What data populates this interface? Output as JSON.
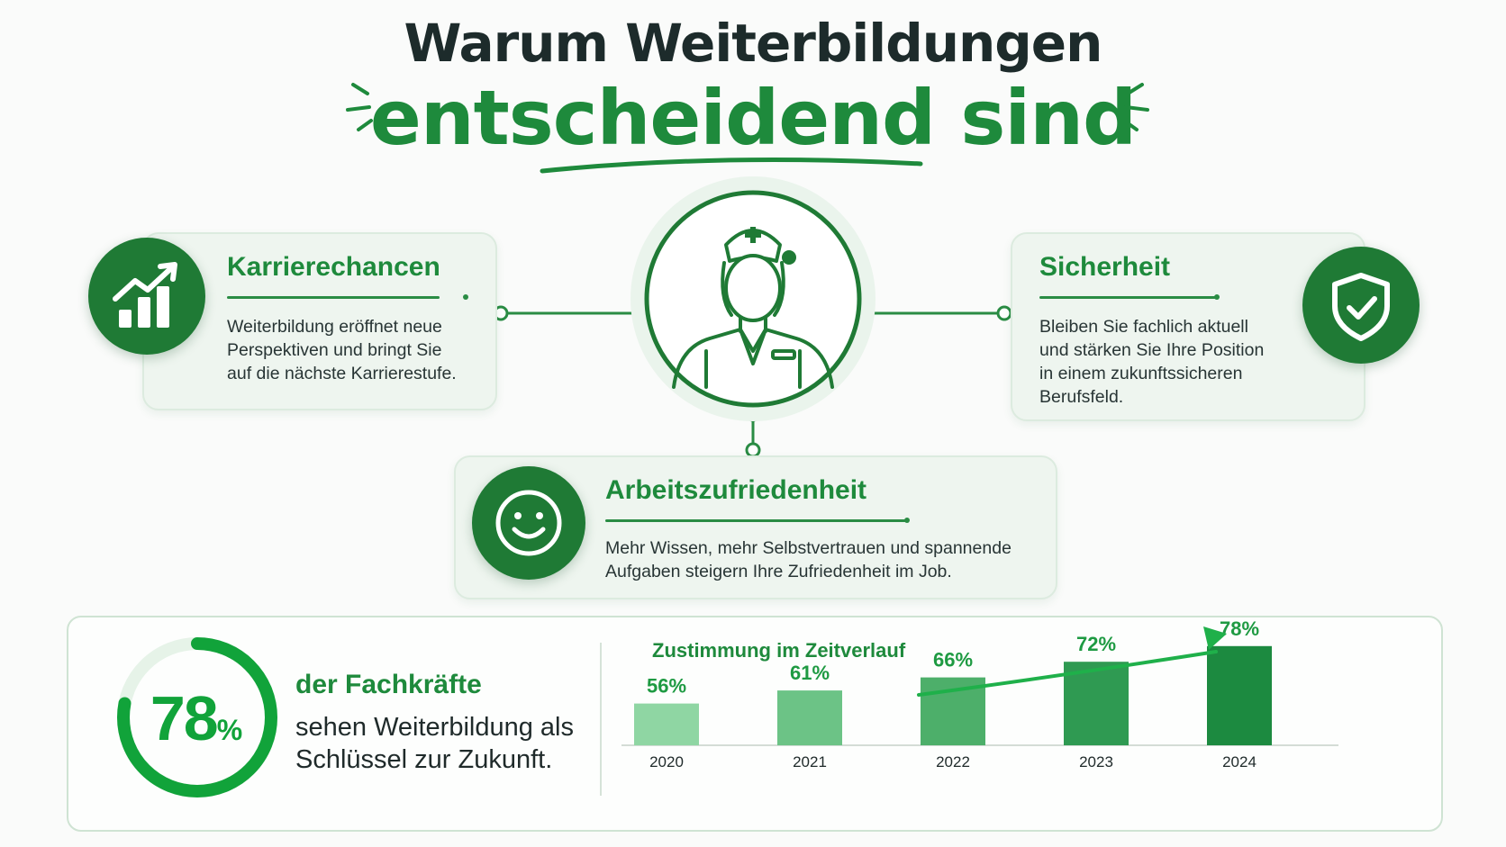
{
  "title": {
    "line1": "Warum Weiterbildungen",
    "line2": "entscheidend sind"
  },
  "colors": {
    "primary_green": "#1e8a3c",
    "dark_green": "#1f7a35",
    "card_bg": "#eef5ef",
    "bright_green": "#11a33a"
  },
  "cards": {
    "career": {
      "title": "Karrierechancen",
      "lines": [
        "Weiterbildung eröffnet neue",
        "Perspektiven und bringt Sie",
        "auf die nächste Karrierestufe."
      ],
      "icon": "bar-chart-growth-icon"
    },
    "security": {
      "title": "Sicherheit",
      "lines": [
        "Bleiben Sie fachlich aktuell",
        "und stärken Sie Ihre Position",
        "in einem zukunftssicheren",
        "Berufsfeld."
      ],
      "icon": "shield-check-icon"
    },
    "satisfaction": {
      "title": "Arbeitszufriedenheit",
      "lines": [
        "Mehr Wissen, mehr Selbstvertrauen und spannende",
        "Aufgaben steigern Ihre Zufriedenheit im Job."
      ],
      "icon": "smiley-icon"
    },
    "center_icon": "nurse-icon"
  },
  "stat": {
    "value": 78,
    "number": "78",
    "symbol": "%",
    "headline": "der Fachkräfte",
    "lines": [
      "sehen Weiterbildung als",
      "Schlüssel zur Zukunft."
    ]
  },
  "chart_data": {
    "type": "bar",
    "title": "Zustimmung im Zeitverlauf",
    "categories": [
      "2020",
      "2021",
      "2022",
      "2023",
      "2024"
    ],
    "values": [
      56,
      61,
      66,
      72,
      78
    ],
    "value_labels": [
      "56%",
      "61%",
      "66%",
      "72%",
      "78%"
    ],
    "bar_colors": [
      "#8fd6a3",
      "#6cc386",
      "#4daf6a",
      "#2f9a52",
      "#1c8a40"
    ],
    "unit": "%",
    "grid": false,
    "legend": "none",
    "trend_arrow": true
  }
}
